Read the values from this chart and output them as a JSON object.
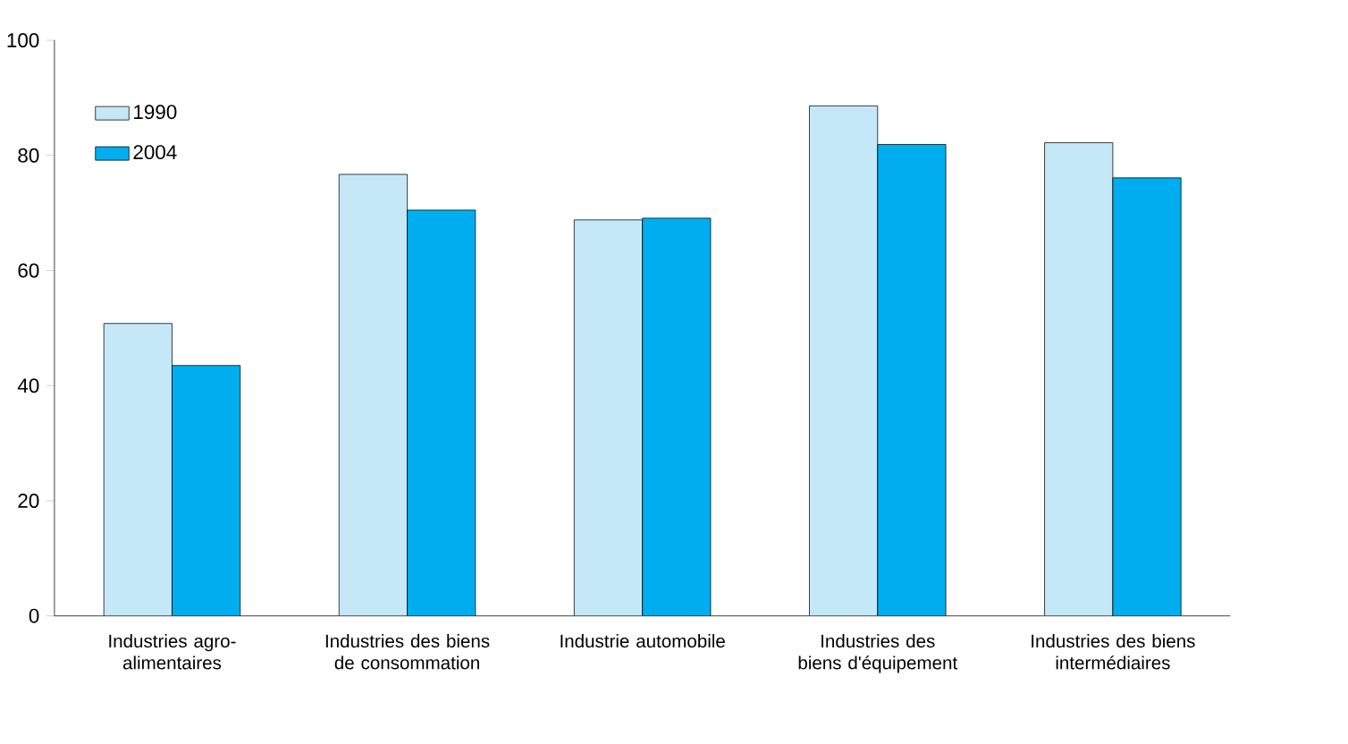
{
  "chart_data": {
    "type": "bar",
    "categories": [
      "Industries agro-alimentaires",
      "Industries des biens de consommation",
      "Industrie automobile",
      "Industries des biens d'équipement",
      "Industries des biens intermédiaires"
    ],
    "series": [
      {
        "name": "1990",
        "color": "#c5e8f8",
        "values": [
          50.8,
          76.7,
          68.8,
          88.6,
          82.2
        ]
      },
      {
        "name": "2004",
        "color": "#00aeef",
        "values": [
          43.5,
          70.5,
          69.1,
          81.9,
          76.1
        ]
      }
    ],
    "ylim": [
      0,
      100
    ],
    "yticks": [
      0,
      20,
      40,
      60,
      80,
      100
    ],
    "grid": false,
    "legend": "top left"
  }
}
